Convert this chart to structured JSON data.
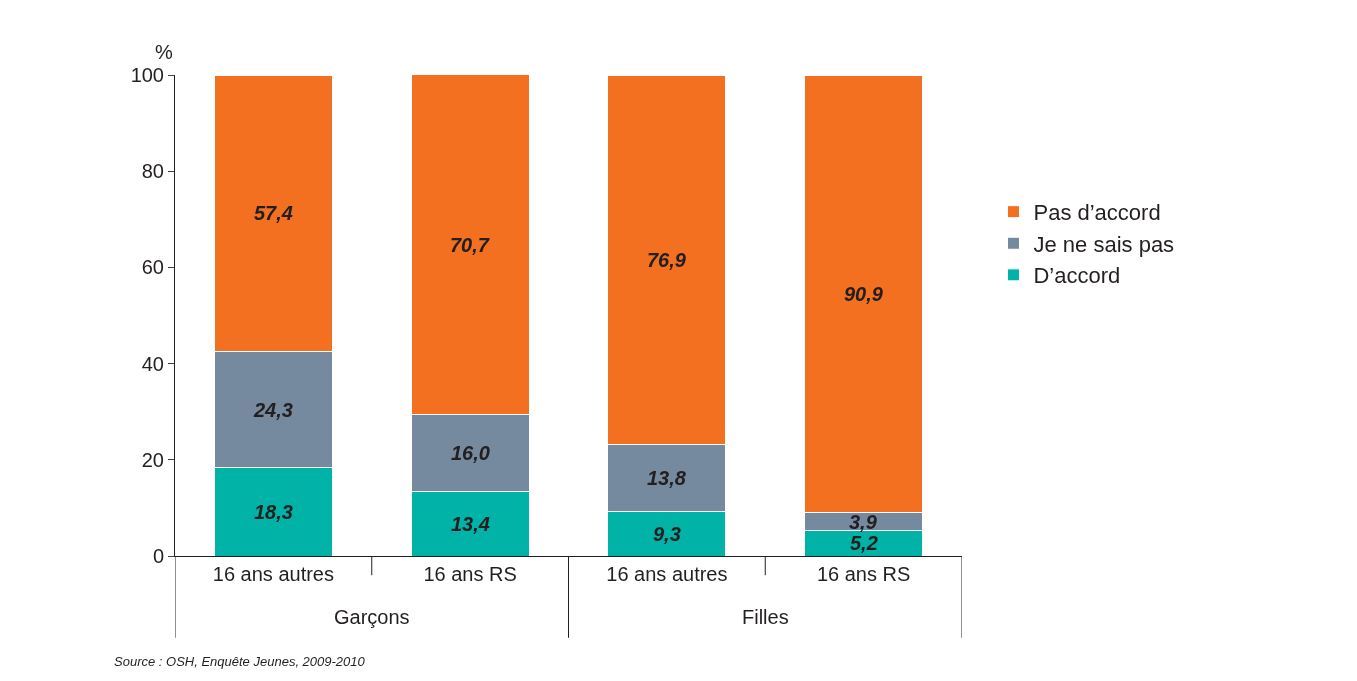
{
  "chart_data": {
    "type": "bar",
    "stacked": true,
    "ylabel": "%",
    "categories": [
      "16 ans autres",
      "16 ans RS",
      "16 ans autres",
      "16 ans RS"
    ],
    "series": [
      {
        "name": "D’accord",
        "color": "#00b3a6",
        "values": [
          18.3,
          13.4,
          9.3,
          5.2
        ],
        "value_labels": [
          "18,3",
          "13,4",
          "9,3",
          "5,2"
        ]
      },
      {
        "name": "Je ne sais pas",
        "color": "#758a9e",
        "values": [
          24.3,
          16.0,
          13.8,
          3.9
        ],
        "value_labels": [
          "24,3",
          "16,0",
          "13,8",
          "3,9"
        ]
      },
      {
        "name": "Pas d’accord",
        "color": "#f37021",
        "values": [
          57.4,
          70.7,
          76.9,
          90.9
        ],
        "value_labels": [
          "57,4",
          "70,7",
          "76,9",
          "90,9"
        ]
      }
    ],
    "ylim": [
      0,
      100
    ],
    "yticks": [
      0,
      20,
      40,
      60,
      80,
      100
    ],
    "legend": "right",
    "annotations": [
      "Garçons",
      "Filles",
      "Source : OSH, Enquête Jeunes, 2009-2010"
    ]
  }
}
